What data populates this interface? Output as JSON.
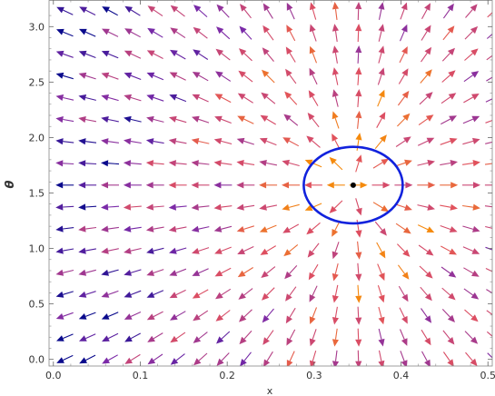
{
  "chart_data": {
    "type": "vector-field",
    "title": "",
    "xlabel": "x",
    "ylabel": "θ",
    "xlim": [
      -0.005,
      0.505
    ],
    "ylim": [
      -0.06,
      3.24
    ],
    "x_ticks": [
      0.0,
      0.1,
      0.2,
      0.3,
      0.4,
      0.5
    ],
    "x_tick_labels": [
      "0.0",
      "0.1",
      "0.2",
      "0.3",
      "0.4",
      "0.5"
    ],
    "y_ticks": [
      0.0,
      0.5,
      1.0,
      1.5,
      2.0,
      2.5,
      3.0
    ],
    "y_tick_labels": [
      "0.0",
      "0.5",
      "1.0",
      "1.5",
      "2.0",
      "2.5",
      "3.0"
    ],
    "grid": false,
    "fixed_point": {
      "x": 0.345,
      "theta": 1.571
    },
    "circle": {
      "center_x": 0.345,
      "center_theta": 1.571,
      "radius_x": 0.057,
      "radius_theta": 0.345,
      "color": "#1122dd"
    },
    "field": {
      "x_samples": [
        0.013,
        0.039,
        0.065,
        0.091,
        0.117,
        0.143,
        0.169,
        0.195,
        0.221,
        0.247,
        0.273,
        0.299,
        0.325,
        0.351,
        0.377,
        0.403,
        0.429,
        0.455,
        0.481,
        0.507
      ],
      "theta_samples": [
        0.0,
        0.196,
        0.393,
        0.589,
        0.785,
        0.982,
        1.178,
        1.374,
        1.571,
        1.767,
        1.963,
        2.16,
        2.356,
        2.553,
        2.749,
        2.945,
        3.142
      ],
      "source": {
        "x": 0.345,
        "theta": 1.571
      },
      "vertical_to_horizontal_ratio": 0.78
    },
    "magnitude_colors": [
      "#f58a0c",
      "#e0505e",
      "#c2447a",
      "#7b2aa8",
      "#0a0a8c"
    ]
  }
}
